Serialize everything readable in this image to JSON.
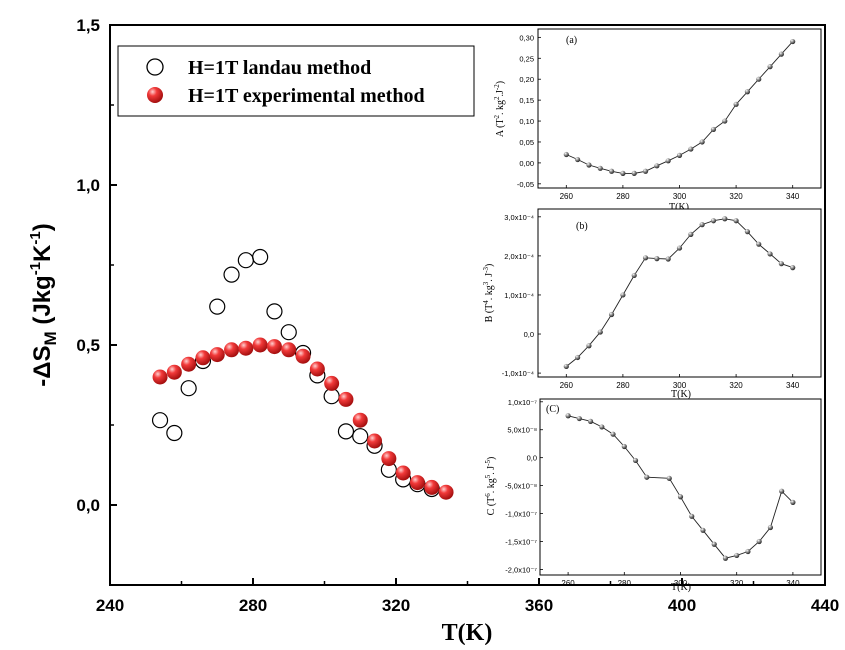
{
  "chart_data": [
    {
      "type": "scatter",
      "title": "",
      "xlabel": "T(K)",
      "ylabel": "-ΔS_M (Jkg⁻¹K⁻¹)",
      "xlim": [
        240,
        440
      ],
      "ylim": [
        -0.25,
        1.5
      ],
      "x_ticks": [
        "240",
        "280",
        "320",
        "360",
        "400",
        "440"
      ],
      "y_ticks": [
        "0,0",
        "0,5",
        "1,0",
        "1,5"
      ],
      "x_tick_values": [
        240,
        280,
        320,
        360,
        400,
        440
      ],
      "y_tick_values": [
        0,
        0.5,
        1.0,
        1.5
      ],
      "legend_position": "top-left",
      "series": [
        {
          "name": "H=1T landau method",
          "marker": "open-circle",
          "color": "#000000",
          "x": [
            254,
            258,
            262,
            266,
            270,
            274,
            278,
            282,
            286,
            290,
            294,
            298,
            302,
            306,
            310,
            314,
            318,
            322,
            326,
            330
          ],
          "y": [
            0.265,
            0.225,
            0.365,
            0.45,
            0.62,
            0.72,
            0.765,
            0.775,
            0.605,
            0.54,
            0.475,
            0.405,
            0.34,
            0.23,
            0.215,
            0.185,
            0.11,
            0.08,
            0.065,
            0.05
          ]
        },
        {
          "name": "H=1T experimental method",
          "marker": "filled-sphere",
          "color": "#e01818",
          "x": [
            254,
            258,
            262,
            266,
            270,
            274,
            278,
            282,
            286,
            290,
            294,
            298,
            302,
            306,
            310,
            314,
            318,
            322,
            326,
            330,
            334
          ],
          "y": [
            0.4,
            0.415,
            0.44,
            0.46,
            0.47,
            0.485,
            0.49,
            0.5,
            0.495,
            0.485,
            0.465,
            0.425,
            0.38,
            0.33,
            0.265,
            0.2,
            0.145,
            0.1,
            0.07,
            0.055,
            0.04
          ]
        }
      ]
    },
    {
      "type": "line",
      "annotation": "(a)",
      "xlabel": "T(K)",
      "ylabel": "A (T². kg².J⁻²)",
      "xlim": [
        250,
        350
      ],
      "ylim": [
        -0.06,
        0.32
      ],
      "x_ticks": [
        "260",
        "280",
        "300",
        "320",
        "340"
      ],
      "y_ticks": [
        "-0,05",
        "0,00",
        "0,05",
        "0,10",
        "0,15",
        "0,20",
        "0,25",
        "0,30"
      ],
      "x_tick_values": [
        260,
        280,
        300,
        320,
        340
      ],
      "y_tick_values": [
        -0.05,
        0,
        0.05,
        0.1,
        0.15,
        0.2,
        0.25,
        0.3
      ],
      "x": [
        260,
        264,
        268,
        272,
        276,
        280,
        284,
        288,
        292,
        296,
        300,
        304,
        308,
        312,
        316,
        320,
        324,
        328,
        332,
        336,
        340
      ],
      "y": [
        0.02,
        0.008,
        -0.005,
        -0.013,
        -0.02,
        -0.025,
        -0.025,
        -0.02,
        -0.007,
        0.005,
        0.018,
        0.033,
        0.05,
        0.08,
        0.1,
        0.14,
        0.17,
        0.2,
        0.23,
        0.26,
        0.29
      ]
    },
    {
      "type": "line",
      "annotation": "(b)",
      "xlabel": "T(K)",
      "ylabel": "B (T⁴. kg³. J⁻³)",
      "xlim": [
        250,
        350
      ],
      "ylim": [
        -0.00011,
        0.00032
      ],
      "x_ticks": [
        "260",
        "280",
        "300",
        "320",
        "340"
      ],
      "y_ticks": [
        "-1,0x10⁻⁴",
        "0,0",
        "1,0x10⁻⁴",
        "2,0x10⁻⁴",
        "3,0x10⁻⁴"
      ],
      "x_tick_values": [
        260,
        280,
        300,
        320,
        340
      ],
      "y_tick_values": [
        -0.0001,
        0,
        0.0001,
        0.0002,
        0.0003
      ],
      "x": [
        260,
        264,
        268,
        272,
        276,
        280,
        284,
        288,
        292,
        296,
        300,
        304,
        308,
        312,
        316,
        320,
        324,
        328,
        332,
        336,
        340
      ],
      "y": [
        -8.3e-05,
        -6e-05,
        -3e-05,
        5e-06,
        5e-05,
        0.0001,
        0.00015,
        0.000195,
        0.000193,
        0.000192,
        0.00022,
        0.000255,
        0.00028,
        0.00029,
        0.000295,
        0.00029,
        0.000262,
        0.00023,
        0.000205,
        0.00018,
        0.00017
      ]
    },
    {
      "type": "line",
      "annotation": "(C)",
      "xlabel": "T(K)",
      "ylabel": "C (T⁶. kg⁵. J⁻⁵)",
      "xlim": [
        250,
        350
      ],
      "ylim": [
        -2.1e-07,
        1.05e-07
      ],
      "x_ticks": [
        "260",
        "280",
        "300",
        "320",
        "340"
      ],
      "y_ticks": [
        "-2,0x10⁻⁷",
        "-1,5x10⁻⁷",
        "-1,0x10⁻⁷",
        "-5,0x10⁻⁸",
        "0,0",
        "5,0x10⁻⁸",
        "1,0x10⁻⁷"
      ],
      "x_tick_values": [
        260,
        280,
        300,
        320,
        340
      ],
      "y_tick_values": [
        -2e-07,
        -1.5e-07,
        -1e-07,
        -5e-08,
        0,
        5e-08,
        1e-07
      ],
      "x": [
        260,
        264,
        268,
        272,
        276,
        280,
        284,
        288,
        296,
        300,
        304,
        308,
        312,
        316,
        320,
        324,
        328,
        332,
        336,
        340
      ],
      "y": [
        7.5e-08,
        7e-08,
        6.5e-08,
        5.5e-08,
        4.2e-08,
        2e-08,
        -5e-09,
        -3.5e-08,
        -3.7e-08,
        -7e-08,
        -1.05e-07,
        -1.3e-07,
        -1.55e-07,
        -1.8e-07,
        -1.75e-07,
        -1.68e-07,
        -1.5e-07,
        -1.25e-07,
        -6e-08,
        -8e-08
      ]
    }
  ]
}
